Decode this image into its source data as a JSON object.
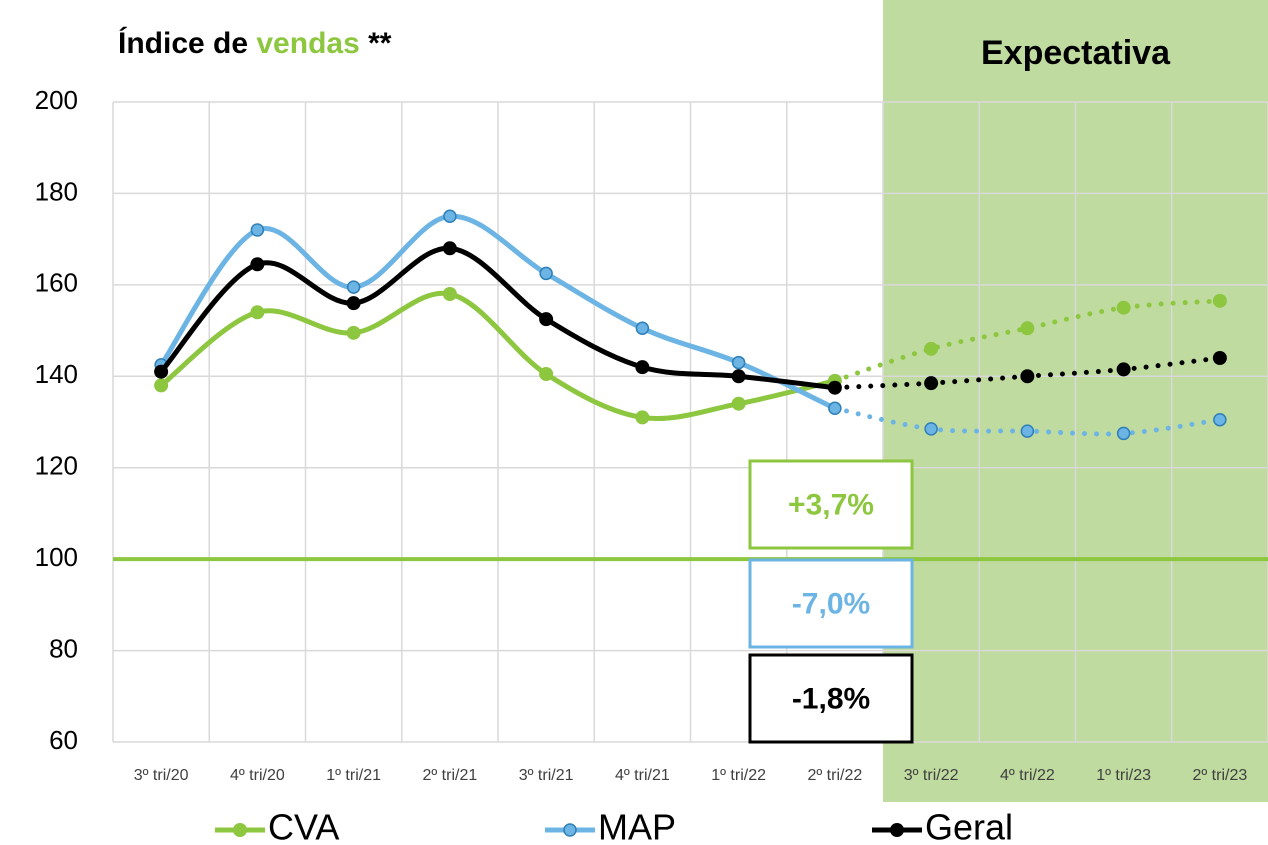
{
  "chart_data": {
    "type": "line",
    "title": [
      "Índice de ",
      "vendas",
      " **"
    ],
    "title_colors": [
      "#000000",
      "#8dc63f",
      "#000000"
    ],
    "categories": [
      "3º tri/20",
      "4º tri/20",
      "1º tri/21",
      "2º tri/21",
      "3º tri/21",
      "4º tri/21",
      "1º tri/22",
      "2º tri/22",
      "3º tri/22",
      "4º tri/22",
      "1º tri/23",
      "2º tri/23"
    ],
    "series": [
      {
        "name": "CVA",
        "color": "#8dc63f",
        "values": [
          138,
          154,
          149.5,
          158,
          140.5,
          131,
          134,
          139,
          146,
          150.5,
          155,
          156.5
        ]
      },
      {
        "name": "MAP",
        "color": "#6cb4e4",
        "values": [
          142.5,
          172,
          159.5,
          175,
          162.5,
          150.5,
          143,
          133,
          128.5,
          128,
          127.5,
          130.5
        ]
      },
      {
        "name": "Geral",
        "color": "#000000",
        "values": [
          141,
          164.5,
          156,
          168,
          152.5,
          142,
          140,
          137.5,
          138.5,
          140,
          141.5,
          144
        ]
      }
    ],
    "forecast": {
      "label": "Expectativa",
      "start": 8,
      "color": "#c0dba0"
    },
    "reference_line": {
      "value": 100,
      "color": "#8dc63f"
    },
    "annotations": [
      {
        "text": "+3,7%",
        "color": "#8dc63f"
      },
      {
        "text": "-7,0%",
        "color": "#6cb4e4"
      },
      {
        "text": "-1,8%",
        "color": "#000000"
      }
    ],
    "ylim": [
      60,
      200
    ],
    "yticks": [
      60,
      80,
      100,
      120,
      140,
      160,
      180,
      200
    ],
    "grid": true,
    "legend": "bottom"
  }
}
